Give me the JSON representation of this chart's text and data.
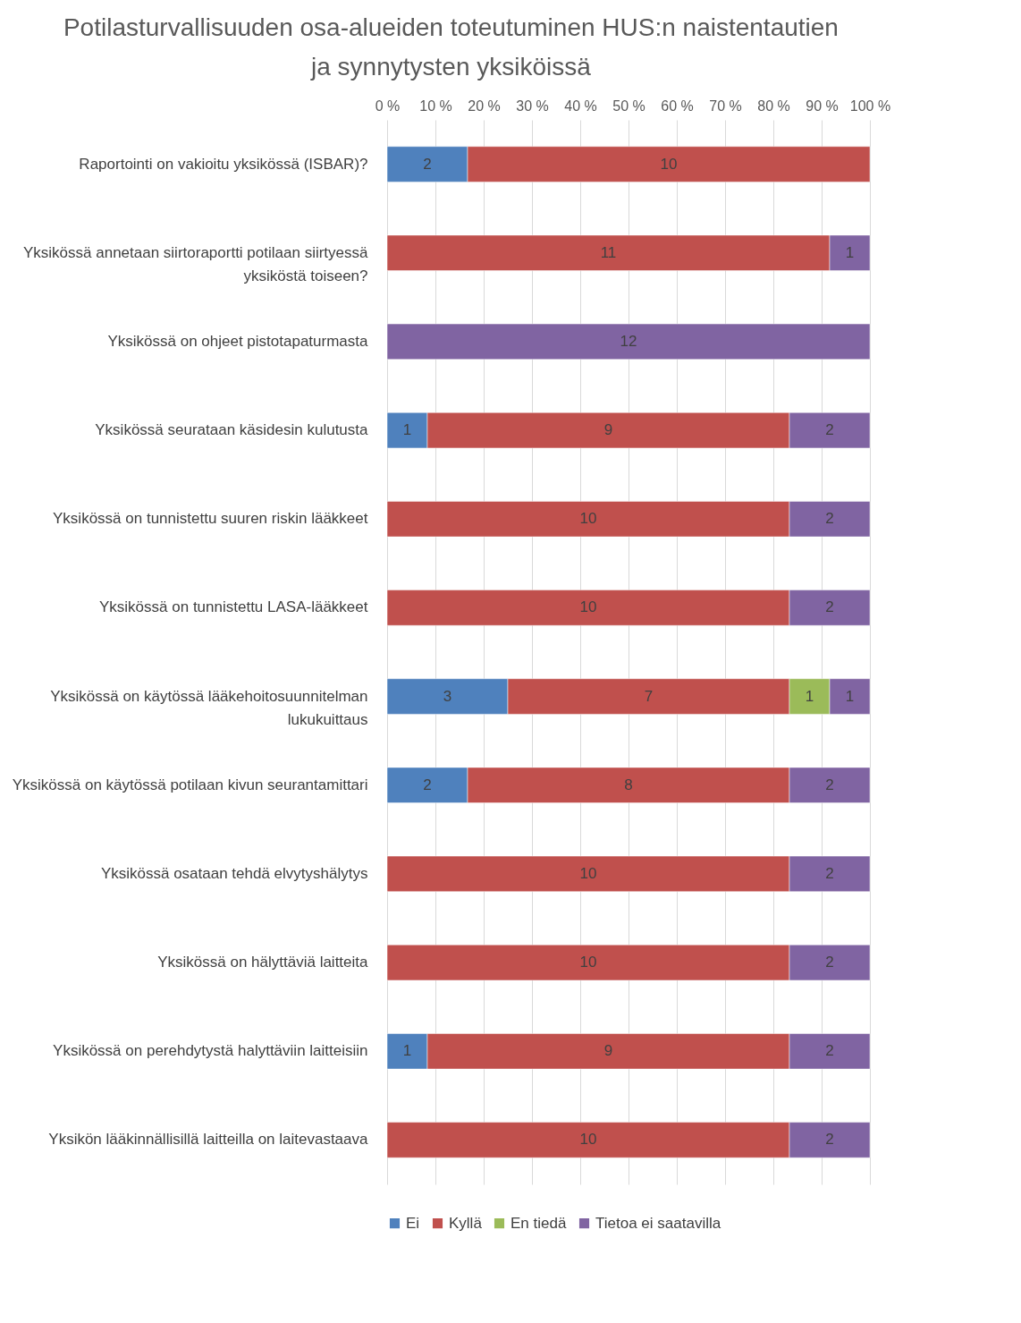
{
  "chart_data": {
    "type": "bar",
    "orientation": "horizontal",
    "stacked": true,
    "title": "Potilasturvallisuuden osa-alueiden toteutuminen HUS:n naistentautien ja synnytysten yksiköissä",
    "categories": [
      "Raportointi on vakioitu yksikössä (ISBAR)?",
      "Yksikössä annetaan siirtoraportti potilaan siirtyessä yksiköstä toiseen?",
      "Yksikössä on ohjeet pistotapaturmasta",
      "Yksikössä seurataan käsidesin kulutusta",
      "Yksikössä on tunnistettu suuren riskin lääkkeet",
      "Yksikössä on tunnistettu LASA-lääkkeet",
      "Yksikössä on käytössä lääkehoitosuunnitelman lukukuittaus",
      "Yksikössä on käytössä potilaan kivun seurantamittari",
      "Yksikössä osataan tehdä elvytyshälytys",
      "Yksikössä on hälyttäviä laitteita",
      "Yksikössä on perehdytystä halyttäviin laitteisiin",
      "Yksikön lääkinnällisillä laitteilla on laitevastaava"
    ],
    "series": [
      {
        "name": "Ei",
        "color": "#4f81bd",
        "values": [
          2,
          null,
          null,
          1,
          null,
          null,
          3,
          2,
          null,
          null,
          1,
          null
        ]
      },
      {
        "name": "Kyllä",
        "color": "#c0504d",
        "values": [
          10,
          11,
          null,
          9,
          10,
          10,
          7,
          8,
          10,
          10,
          9,
          10
        ]
      },
      {
        "name": "En tiedä",
        "color": "#9bbb59",
        "values": [
          null,
          null,
          null,
          null,
          null,
          null,
          1,
          null,
          null,
          null,
          null,
          null
        ]
      },
      {
        "name": "Tietoa ei saatavilla",
        "color": "#8064a2",
        "values": [
          null,
          1,
          12,
          2,
          2,
          2,
          1,
          2,
          2,
          2,
          2,
          2
        ]
      }
    ],
    "xlim": [
      0,
      12
    ],
    "x2lim": [
      0,
      100
    ],
    "x2ticks": [
      {
        "value": 0,
        "label": "0 %"
      },
      {
        "value": 10,
        "label": "10 %"
      },
      {
        "value": 20,
        "label": "20 %"
      },
      {
        "value": 30,
        "label": "30 %"
      },
      {
        "value": 40,
        "label": "40 %"
      },
      {
        "value": 50,
        "label": "50 %"
      },
      {
        "value": 60,
        "label": "60 %"
      },
      {
        "value": 70,
        "label": "70 %"
      },
      {
        "value": 80,
        "label": "80 %"
      },
      {
        "value": 90,
        "label": "90 %"
      },
      {
        "value": 100,
        "label": "100 %"
      }
    ],
    "grid": "x",
    "legend": "bottom",
    "data_labels": true
  }
}
